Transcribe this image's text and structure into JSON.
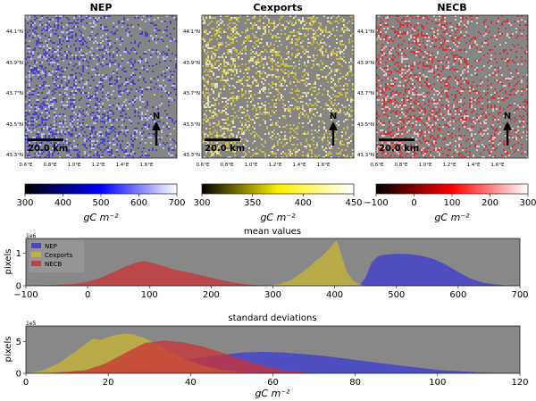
{
  "chart_data": [
    {
      "type": "heatmap",
      "title": "NEP",
      "lat_ticks": [
        "44.1°N",
        "43.9°N",
        "43.7°N",
        "43.5°N",
        "43.3°N"
      ],
      "lon_ticks": [
        "0.6°E",
        "0.8°E",
        "1.0°E",
        "1.2°E",
        "1.4°E",
        "1.6°E"
      ],
      "scalebar": "20.0 km",
      "north": "N",
      "colorbar": {
        "ticks": [
          "300",
          "400",
          "500",
          "600",
          "700"
        ],
        "range": [
          300,
          700
        ],
        "label": "gC m⁻²",
        "colors": [
          "#000000",
          "#0000ff",
          "#ffffff"
        ]
      },
      "map_colors": {
        "base": "#858585",
        "high": "#3a3ad8",
        "low": "#c8c8ff"
      }
    },
    {
      "type": "heatmap",
      "title": "Cexports",
      "lat_ticks": [
        "44.1°N",
        "43.9°N",
        "43.7°N",
        "43.5°N",
        "43.3°N"
      ],
      "lon_ticks": [
        "0.6°E",
        "0.8°E",
        "1.0°E",
        "1.2°E",
        "1.4°E",
        "1.6°E"
      ],
      "scalebar": "20.0 km",
      "north": "N",
      "colorbar": {
        "ticks": [
          "300",
          "350",
          "400",
          "450"
        ],
        "range": [
          300,
          450
        ],
        "label": "gC m⁻²",
        "colors": [
          "#000000",
          "#ffee00",
          "#ffffff"
        ]
      },
      "map_colors": {
        "base": "#858585",
        "high": "#d6c43a",
        "low": "#f4f0c0"
      }
    },
    {
      "type": "heatmap",
      "title": "NECB",
      "lat_ticks": [
        "44.1°N",
        "43.9°N",
        "43.7°N",
        "43.5°N",
        "43.3°N"
      ],
      "lon_ticks": [
        "0.6°E",
        "0.8°E",
        "1.0°E",
        "1.2°E",
        "1.4°E",
        "1.6°E"
      ],
      "scalebar": "20.0 km",
      "north": "N",
      "colorbar": {
        "ticks": [
          "−100",
          "0",
          "100",
          "200",
          "300"
        ],
        "range": [
          -100,
          300
        ],
        "label": "gC m⁻²",
        "colors": [
          "#000000",
          "#ff0000",
          "#ffffff"
        ]
      },
      "map_colors": {
        "base": "#858585",
        "high": "#dd2a2a",
        "low": "#ffc8c8"
      }
    },
    {
      "type": "area",
      "title": "mean values",
      "ylabel": "pixels",
      "scale_label": "1e6",
      "xlim": [
        -100,
        700
      ],
      "ylim": [
        0,
        1.45
      ],
      "xticks": [
        "−100",
        "0",
        "100",
        "200",
        "300",
        "400",
        "500",
        "600",
        "700"
      ],
      "yticks": [
        "0",
        "1"
      ],
      "legend": "top-left",
      "series": [
        {
          "name": "NEP",
          "color": "#3b3bd4",
          "x": [
            440,
            450,
            460,
            470,
            480,
            500,
            520,
            540,
            560,
            580,
            600,
            620,
            640,
            660,
            680,
            700
          ],
          "y": [
            0,
            0.25,
            0.72,
            0.9,
            0.95,
            0.98,
            0.97,
            0.92,
            0.82,
            0.65,
            0.42,
            0.22,
            0.1,
            0.04,
            0.01,
            0
          ]
        },
        {
          "name": "Cexports",
          "color": "#c9b536",
          "x": [
            290,
            310,
            330,
            350,
            360,
            370,
            380,
            385,
            390,
            395,
            400,
            403,
            406,
            410,
            415,
            420,
            430,
            440,
            450
          ],
          "y": [
            0,
            0.05,
            0.18,
            0.45,
            0.6,
            0.78,
            0.92,
            1.02,
            1.1,
            1.22,
            1.35,
            1.38,
            1.28,
            1.0,
            0.7,
            0.42,
            0.15,
            0.04,
            0
          ]
        },
        {
          "name": "NECB",
          "color": "#cc3333",
          "x": [
            -100,
            -60,
            -20,
            0,
            20,
            40,
            60,
            80,
            90,
            100,
            120,
            140,
            160,
            180,
            200,
            220,
            240,
            260,
            280,
            300,
            320
          ],
          "y": [
            0,
            0.02,
            0.06,
            0.12,
            0.24,
            0.4,
            0.58,
            0.72,
            0.76,
            0.73,
            0.62,
            0.5,
            0.42,
            0.34,
            0.25,
            0.16,
            0.09,
            0.04,
            0.015,
            0.005,
            0
          ]
        }
      ]
    },
    {
      "type": "area",
      "title": "standard deviations",
      "ylabel": "pixels",
      "xlabel": "gC m⁻²",
      "scale_label": "1e5",
      "xlim": [
        0,
        125
      ],
      "ylim": [
        0,
        7.5
      ],
      "xticks": [
        "0",
        "20",
        "40",
        "60",
        "80",
        "100",
        "120"
      ],
      "yticks": [
        "0",
        "5"
      ],
      "series": [
        {
          "name": "NEP",
          "color": "#3b3bd4",
          "x": [
            5,
            15,
            25,
            35,
            45,
            55,
            60,
            65,
            75,
            85,
            95,
            105,
            115,
            125
          ],
          "y": [
            0,
            0.1,
            0.5,
            1.4,
            2.6,
            3.3,
            3.4,
            3.3,
            2.8,
            2.0,
            1.2,
            0.5,
            0.15,
            0.02
          ]
        },
        {
          "name": "Cexports",
          "color": "#c9b536",
          "x": [
            0,
            4,
            8,
            12,
            15,
            17,
            19,
            22,
            25,
            27,
            30,
            33,
            36,
            40,
            45,
            50,
            55,
            60
          ],
          "y": [
            0,
            0.4,
            1.5,
            3.2,
            4.6,
            5.5,
            5.3,
            6.0,
            6.3,
            6.2,
            5.6,
            4.6,
            3.5,
            2.3,
            1.2,
            0.5,
            0.15,
            0
          ]
        },
        {
          "name": "NECB",
          "color": "#cc3333",
          "x": [
            5,
            15,
            20,
            25,
            30,
            35,
            40,
            45,
            50,
            55,
            60,
            65,
            70,
            80
          ],
          "y": [
            0,
            0.5,
            1.5,
            3.2,
            4.8,
            5.2,
            4.9,
            4.2,
            3.2,
            2.2,
            1.2,
            0.5,
            0.2,
            0
          ]
        }
      ]
    }
  ]
}
